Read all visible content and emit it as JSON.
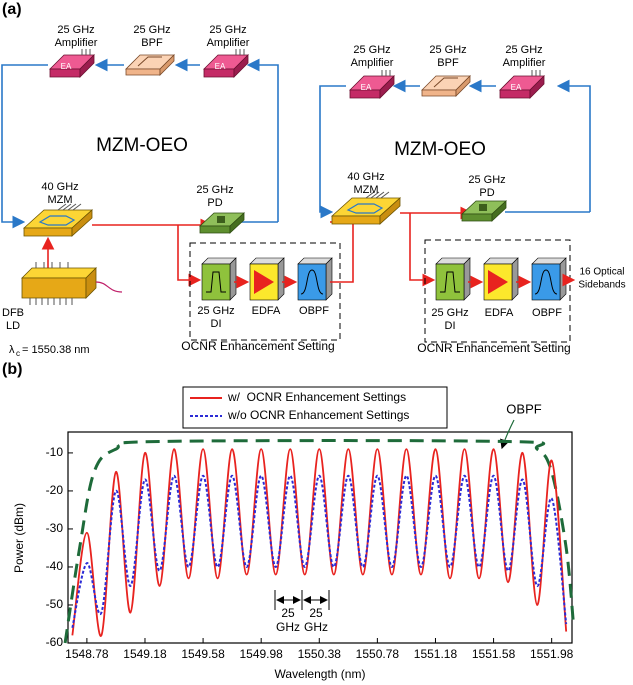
{
  "diagram": {
    "panel_label": "(a)",
    "amp_tag": "EA",
    "oeo_1": {
      "title": "MZM-OEO",
      "amp_left": [
        "25 GHz",
        "Amplifier"
      ],
      "bpf": [
        "25 GHz",
        "BPF"
      ],
      "amp_right": [
        "25 GHz",
        "Amplifier"
      ],
      "mzm": [
        "40 GHz",
        "MZM"
      ],
      "pd": [
        "25 GHz",
        "PD"
      ]
    },
    "oeo_2": {
      "title": "MZM-OEO",
      "amp_left": [
        "25 GHz",
        "Amplifier"
      ],
      "bpf": [
        "25 GHz",
        "BPF"
      ],
      "amp_right": [
        "25 GHz",
        "Amplifier"
      ],
      "mzm": [
        "40 GHz",
        "MZM"
      ],
      "pd": [
        "25 GHz",
        "PD"
      ]
    },
    "laser": {
      "label": [
        "DFB",
        "LD"
      ],
      "wavelength_symbol": "λ",
      "wavelength_sub": "c",
      "wavelength_value": "= 1550.38 nm"
    },
    "setting_1": {
      "di": [
        "25 GHz",
        "DI"
      ],
      "edfa": "EDFA",
      "obpf": "OBPF",
      "caption": "OCNR Enhancement Setting"
    },
    "setting_2": {
      "di": [
        "25 GHz",
        "DI"
      ],
      "edfa": "EDFA",
      "obpf": "OBPF",
      "caption": "OCNR Enhancement Setting"
    },
    "output": [
      "16 Optical",
      "Sidebands"
    ]
  },
  "chart_data": {
    "type": "line",
    "panel_label": "(b)",
    "xlabel": "Wavelength (nm)",
    "ylabel": "Power (dBm)",
    "xlim": [
      1548.65,
      1552.12
    ],
    "ylim": [
      -60,
      -4.5
    ],
    "xticks": [
      1548.78,
      1549.18,
      1549.58,
      1549.98,
      1550.38,
      1550.78,
      1551.18,
      1551.58,
      1551.98
    ],
    "yticks": [
      -60,
      -50,
      -40,
      -30,
      -20,
      -10
    ],
    "x": [
      1548.68,
      1548.78,
      1548.88,
      1548.98,
      1549.08,
      1549.18,
      1549.28,
      1549.38,
      1549.48,
      1549.58,
      1549.68,
      1549.78,
      1549.88,
      1549.98,
      1550.08,
      1550.18,
      1550.28,
      1550.38,
      1550.48,
      1550.58,
      1550.68,
      1550.78,
      1550.88,
      1550.98,
      1551.08,
      1551.18,
      1551.28,
      1551.38,
      1551.48,
      1551.58,
      1551.68,
      1551.78,
      1551.88,
      1551.98,
      1552.08
    ],
    "series": [
      {
        "name": "w/  OCNR Enhancement Settings",
        "color": "#e8231f",
        "dash": "solid",
        "values": [
          -58,
          -31,
          -58,
          -15,
          -52,
          -10,
          -45,
          -9,
          -43,
          -9,
          -43,
          -9,
          -42,
          -9,
          -42,
          -9,
          -42,
          -9,
          -42,
          -9,
          -42,
          -9,
          -42,
          -9,
          -42,
          -9,
          -43,
          -9,
          -43,
          -9,
          -44,
          -10,
          -50,
          -12,
          -57
        ]
      },
      {
        "name": "w/o OCNR Enhancement Settings",
        "color": "#2b2bd6",
        "dash": "dotted",
        "values": [
          -56,
          -39,
          -52,
          -20,
          -45,
          -17,
          -41,
          -16,
          -40,
          -16,
          -40,
          -16,
          -40,
          -16,
          -40,
          -16,
          -40,
          -16,
          -40,
          -16,
          -40,
          -16,
          -40,
          -16,
          -40,
          -16,
          -40,
          -16,
          -40,
          -16,
          -41,
          -17,
          -45,
          -22,
          -55
        ]
      }
    ],
    "filter_curve": {
      "name": "OBPF",
      "color": "#1e6b3a",
      "x": [
        1548.63,
        1548.73,
        1548.83,
        1548.98,
        1549.28,
        1551.68,
        1551.88,
        1551.98,
        1552.08,
        1552.13
      ],
      "values": [
        -60,
        -35,
        -15,
        -9,
        -7,
        -7,
        -9,
        -15,
        -35,
        -55
      ]
    },
    "spacing_label": [
      "25",
      "GHz"
    ]
  }
}
